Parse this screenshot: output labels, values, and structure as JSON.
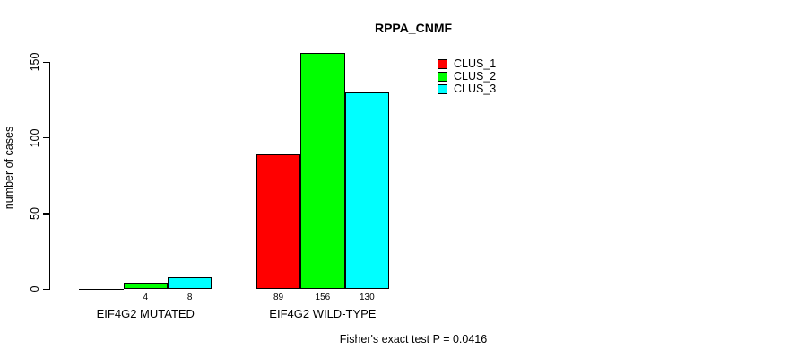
{
  "title": "RPPA_CNMF",
  "y_axis": {
    "label": "number of cases",
    "ticks": [
      0,
      50,
      100,
      150
    ]
  },
  "footer": "Fisher's exact test P = 0.0416",
  "legend": {
    "items": [
      {
        "label": "CLUS_1",
        "color": "#ff0000"
      },
      {
        "label": "CLUS_2",
        "color": "#00ff00"
      },
      {
        "label": "CLUS_3",
        "color": "#00ffff"
      }
    ]
  },
  "chart_data": {
    "type": "bar",
    "title": "RPPA_CNMF",
    "ylabel": "number of cases",
    "xlabel": "",
    "categories": [
      "EIF4G2 MUTATED",
      "EIF4G2 WILD-TYPE"
    ],
    "series": [
      {
        "name": "CLUS_1",
        "color": "#ff0000",
        "values": [
          0,
          89
        ]
      },
      {
        "name": "CLUS_2",
        "color": "#00ff00",
        "values": [
          4,
          156
        ]
      },
      {
        "name": "CLUS_3",
        "color": "#00ffff",
        "values": [
          8,
          130
        ]
      }
    ],
    "bar_value_labels": [
      [
        "",
        "4",
        "8"
      ],
      [
        "89",
        "156",
        "130"
      ]
    ],
    "ylim": [
      0,
      150
    ],
    "yticks": [
      0,
      50,
      100,
      150
    ],
    "grid": false,
    "legend_position": "top-right",
    "annotation": "Fisher's exact test P = 0.0416"
  }
}
